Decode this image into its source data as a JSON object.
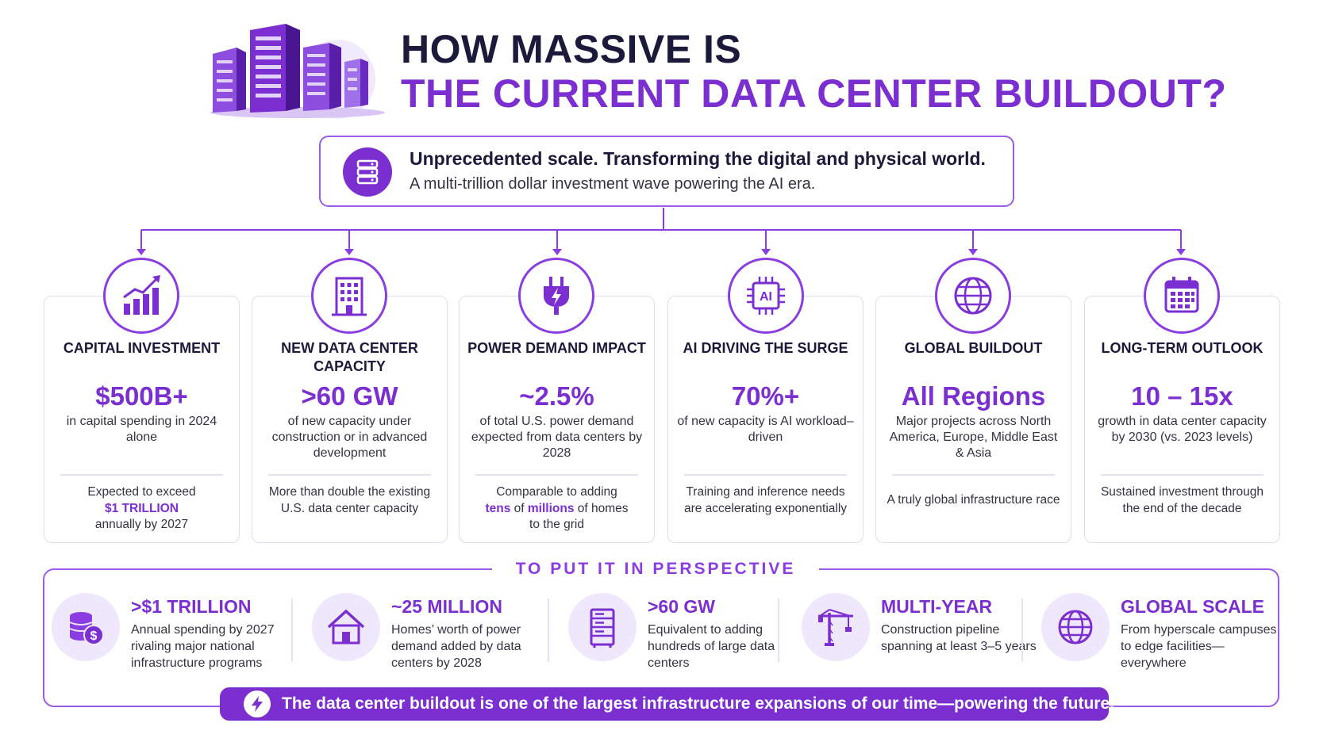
{
  "header": {
    "title_line1": "HOW MASSIVE IS",
    "title_line2": "THE CURRENT DATA CENTER BUILDOUT?",
    "icon": "server-buildings-illustration"
  },
  "intro": {
    "icon": "server-stack-icon",
    "headline": "Unprecedented scale. Transforming the digital and physical world.",
    "subline": "A multi-trillion dollar investment wave powering the AI era."
  },
  "cards": [
    {
      "icon": "growth-chart-icon",
      "title": "CAPITAL INVESTMENT",
      "value": "$500B+",
      "desc": "in capital spending in 2024 alone",
      "foot_pre": "Expected to exceed",
      "foot_hl": "$1 TRILLION",
      "foot_post": "annually by 2027"
    },
    {
      "icon": "office-building-icon",
      "title": "NEW DATA CENTER CAPACITY",
      "value": ">60 GW",
      "desc": "of new capacity under construction or in advanced development",
      "foot": "More than double the existing U.S. data center capacity"
    },
    {
      "icon": "power-plug-icon",
      "title": "POWER DEMAND IMPACT",
      "value": "~2.5%",
      "desc": "of total U.S. power demand expected from data centers by 2028",
      "foot_a": "Comparable to adding",
      "foot_hl1": "tens",
      "foot_b": "of",
      "foot_hl2": "millions",
      "foot_c": "of homes to the grid"
    },
    {
      "icon": "ai-chip-icon",
      "title": "AI DRIVING THE SURGE",
      "value": "70%+",
      "desc": "of new capacity is AI workload–driven",
      "foot": "Training and inference needs are accelerating exponentially",
      "chip_label": "AI"
    },
    {
      "icon": "globe-icon",
      "title": "GLOBAL BUILDOUT",
      "value": "All Regions",
      "desc": "Major projects across North America, Europe, Middle East & Asia",
      "foot": "A truly global infrastructure race"
    },
    {
      "icon": "calendar-icon",
      "title": "LONG-TERM OUTLOOK",
      "value": "10 – 15x",
      "desc": "growth in data center capacity by 2030 (vs. 2023 levels)",
      "foot": "Sustained investment through the end of the decade"
    }
  ],
  "perspective": {
    "title": "TO PUT IT IN PERSPECTIVE",
    "items": [
      {
        "icon": "coin-stack-icon",
        "title": ">$1 TRILLION",
        "desc": "Annual spending by 2027 rivaling major national infrastructure programs"
      },
      {
        "icon": "house-icon",
        "title": "~25 MILLION",
        "desc": "Homes’ worth of power demand added by data centers by 2028"
      },
      {
        "icon": "server-rack-icon",
        "title": ">60 GW",
        "desc": "Equivalent to adding hundreds of large data centers"
      },
      {
        "icon": "construction-crane-icon",
        "title": "MULTI-YEAR",
        "desc": "Construction pipeline spanning at least 3–5 years"
      },
      {
        "icon": "globe-icon",
        "title": "GLOBAL SCALE",
        "desc": "From hyperscale campuses to edge facilities— everywhere"
      }
    ]
  },
  "banner": {
    "icon": "lightning-icon",
    "text": "The data center buildout is one of the largest infrastructure expansions of our time—powering the future."
  },
  "colors": {
    "accent": "#7b2fd0",
    "accent_light": "#efe7fb",
    "border": "#9b5ce6",
    "dark": "#1b1a3a"
  }
}
